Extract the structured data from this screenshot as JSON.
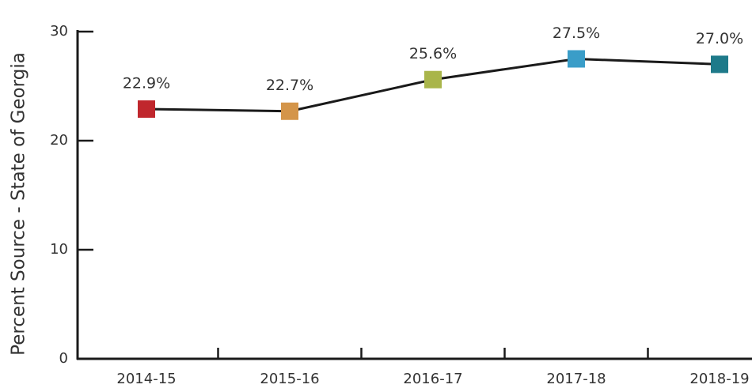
{
  "chart_data": {
    "type": "line",
    "y_label": "Percent Source - State of Georgia",
    "categories": [
      "2014-15",
      "2015-16",
      "2016-17",
      "2017-18",
      "2018-19"
    ],
    "values": [
      22.9,
      22.7,
      25.6,
      27.5,
      27.0
    ],
    "value_labels": [
      "22.9%",
      "22.7%",
      "25.6%",
      "27.5%",
      "27.0%"
    ],
    "color": "#1a1a1a",
    "marker_colors": [
      "#c0272d",
      "#d4954a",
      "#a9b54a",
      "#3a9dc8",
      "#1e7a8a"
    ],
    "ylim": [
      0,
      30
    ],
    "yticks": [
      0,
      10,
      20,
      30
    ],
    "grid": false
  }
}
